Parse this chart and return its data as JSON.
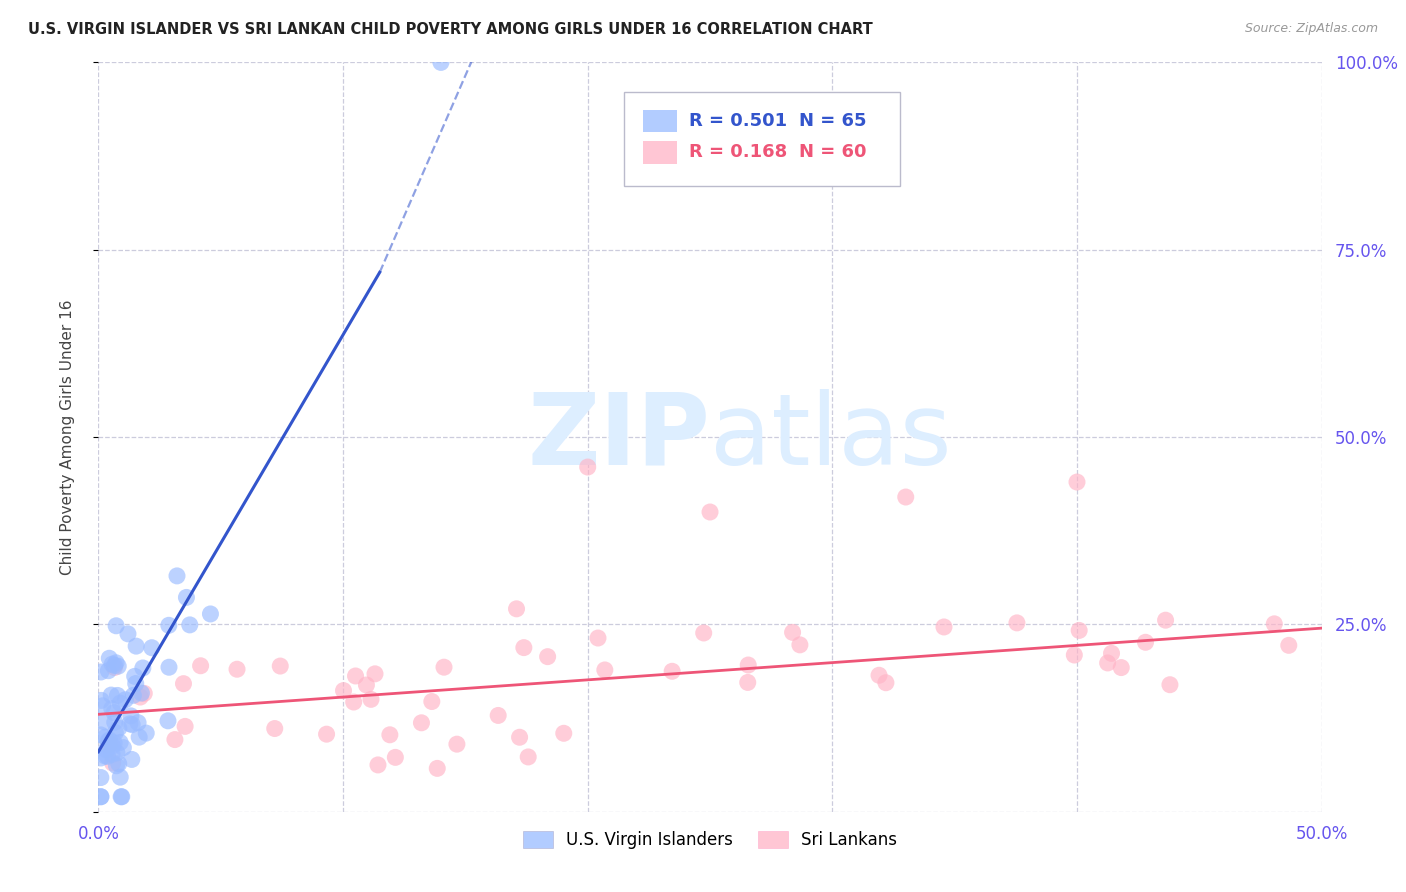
{
  "title": "U.S. VIRGIN ISLANDER VS SRI LANKAN CHILD POVERTY AMONG GIRLS UNDER 16 CORRELATION CHART",
  "source": "Source: ZipAtlas.com",
  "ylabel": "Child Poverty Among Girls Under 16",
  "xlim": [
    0.0,
    0.5
  ],
  "ylim": [
    0.0,
    1.0
  ],
  "blue_R": 0.501,
  "blue_N": 65,
  "pink_R": 0.168,
  "pink_N": 60,
  "blue_color": "#99BBFF",
  "pink_color": "#FFB3C6",
  "blue_line_color": "#3355CC",
  "pink_line_color": "#EE5577",
  "axis_color": "#6655EE",
  "watermark_zip": "ZIP",
  "watermark_atlas": "atlas",
  "watermark_color": "#DDEEFF",
  "background_color": "#FFFFFF",
  "grid_color": "#CCCCDD"
}
